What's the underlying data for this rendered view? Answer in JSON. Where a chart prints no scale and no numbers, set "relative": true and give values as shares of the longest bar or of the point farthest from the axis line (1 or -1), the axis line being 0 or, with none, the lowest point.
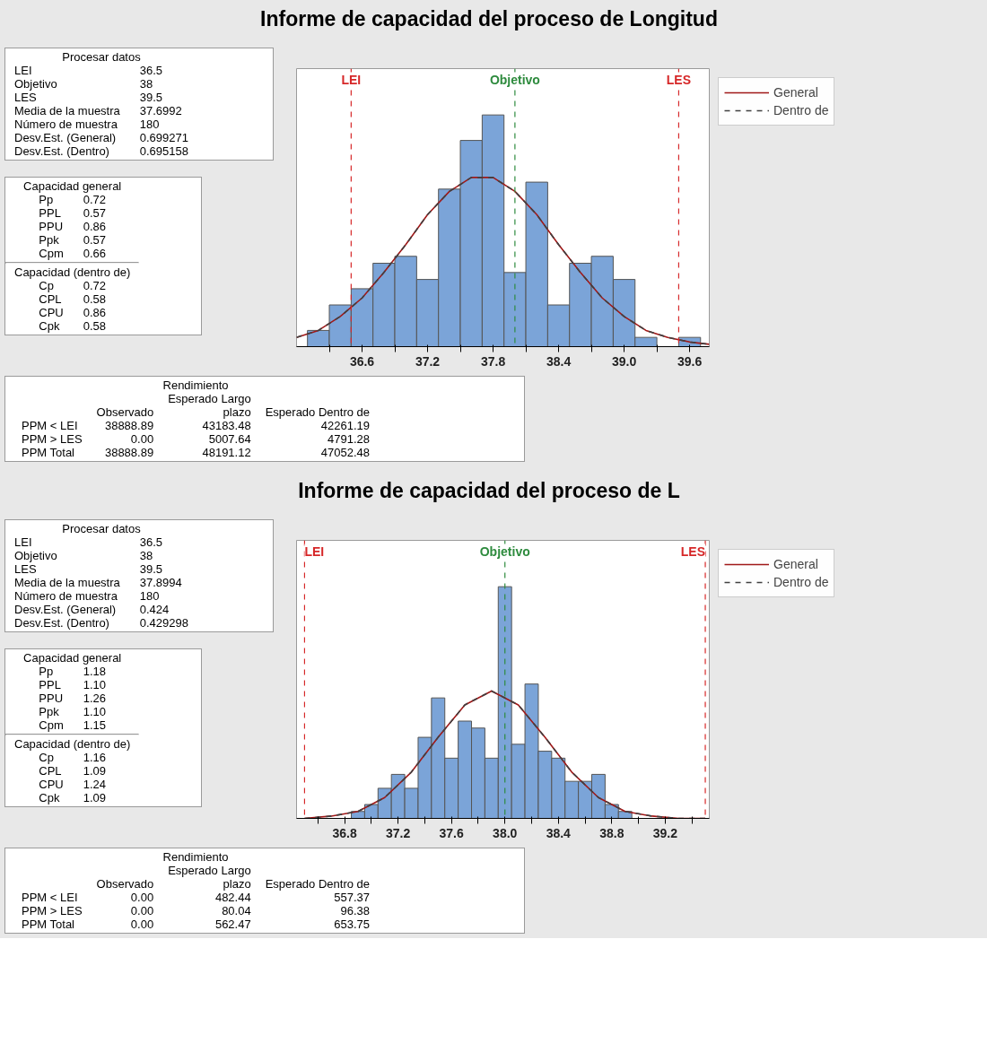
{
  "chart_data": [
    {
      "type": "histogram",
      "title": "Informe de capacidad del proceso de Longitud",
      "relative": true,
      "color": "#7ba4d8",
      "bins": [
        36.1,
        36.3,
        36.5,
        36.7,
        36.9,
        37.1,
        37.3,
        37.5,
        37.7,
        37.9,
        38.1,
        38.3,
        38.5,
        38.7,
        38.9,
        39.1,
        39.3,
        39.5,
        39.7
      ],
      "values": [
        0.07,
        0.18,
        0.25,
        0.36,
        0.39,
        0.29,
        0.68,
        0.89,
        1,
        0.32,
        0.71,
        0.18,
        0.36,
        0.39,
        0.29,
        0.04,
        0,
        0.04
      ],
      "xlim": [
        36.0,
        39.78
      ],
      "xticks": [
        {
          "value": 36.3,
          "label": null
        },
        36.6,
        {
          "value": 36.9,
          "label": null
        },
        37.2,
        {
          "value": 37.5,
          "label": null
        },
        37.8,
        {
          "value": 38.1,
          "label": null
        },
        38.4,
        {
          "value": 38.7,
          "label": null
        },
        {
          "value": 39,
          "label": "39.0"
        },
        {
          "value": 39.3,
          "label": null
        },
        39.6
      ],
      "ref_lines": [
        {
          "axis": "x",
          "value": 36.5,
          "label": "LEI",
          "color": "#d62728",
          "line_style": "dashed"
        },
        {
          "axis": "x",
          "value": 38,
          "label": "Objetivo",
          "color": "#2e8b3e",
          "line_style": "dashed"
        },
        {
          "axis": "x",
          "value": 39.5,
          "label": "LES",
          "color": "#d62728",
          "line_style": "dashed"
        }
      ],
      "legend": "right",
      "series": [
        {
          "name": "General",
          "type": "line",
          "color": "#a01818",
          "line_style": "solid",
          "x": [
            36.0,
            36.2,
            36.4,
            36.6,
            36.8,
            37.0,
            37.2,
            37.4,
            37.6,
            37.7,
            37.8,
            38.0,
            38.2,
            38.4,
            38.6,
            38.8,
            39.0,
            39.2,
            39.4,
            39.6,
            39.78
          ],
          "values": [
            0.04,
            0.07,
            0.13,
            0.21,
            0.32,
            0.44,
            0.57,
            0.67,
            0.73,
            0.73,
            0.73,
            0.67,
            0.57,
            0.44,
            0.32,
            0.21,
            0.13,
            0.07,
            0.04,
            0.02,
            0.01
          ]
        },
        {
          "name": "Dentro de",
          "type": "line",
          "color": "#404040",
          "line_style": "dashed",
          "x": [
            36.0,
            36.2,
            36.4,
            36.6,
            36.8,
            37.0,
            37.2,
            37.4,
            37.6,
            37.7,
            37.8,
            38.0,
            38.2,
            38.4,
            38.6,
            38.8,
            39.0,
            39.2,
            39.4,
            39.6,
            39.78
          ],
          "values": [
            0.04,
            0.07,
            0.13,
            0.21,
            0.32,
            0.44,
            0.57,
            0.67,
            0.73,
            0.73,
            0.73,
            0.67,
            0.57,
            0.44,
            0.32,
            0.21,
            0.13,
            0.07,
            0.04,
            0.02,
            0.01
          ]
        }
      ],
      "annotations": [
        "Procesar datos",
        "LEI\t36.5",
        "Objetivo\t38",
        "LES\t39.5",
        "Media de la muestra\t37.6992",
        "Número de muestra\t180",
        "Desv.Est. (General)\t0.699271",
        "Desv.Est. (Dentro)\t0.695158",
        "Capacidad general",
        "Pp\t0.72",
        "PPL\t0.57",
        "PPU\t0.86",
        "Ppk\t0.57",
        "Cpm\t0.66",
        "Capacidad (dentro de)",
        "Cp\t0.72",
        "CPL\t0.58",
        "CPU\t0.86",
        "Cpk\t0.58",
        "Rendimiento",
        "\tObservado\tEsperado Largo\nplazo\tEsperado Dentro de",
        "PPM < LEI\t38888.89\t43183.48\t42261.19",
        "PPM > LES\t0.00\t5007.64\t4791.28",
        "PPM Total\t38888.89\t48191.12\t47052.48"
      ]
    },
    {
      "type": "histogram",
      "title": "Informe de capacidad del proceso de L",
      "relative": true,
      "color": "#7ba4d8",
      "bins": [
        36.85,
        36.95,
        37.05,
        37.15,
        37.25,
        37.35,
        37.45,
        37.55,
        37.65,
        37.75,
        37.85,
        37.95,
        38.05,
        38.15,
        38.25,
        38.35,
        38.45,
        38.55,
        38.65,
        38.75,
        38.85,
        38.95
      ],
      "values": [
        0.03,
        0.06,
        0.13,
        0.19,
        0.13,
        0.35,
        0.52,
        0.26,
        0.42,
        0.39,
        0.26,
        1,
        0.32,
        0.58,
        0.29,
        0.26,
        0.16,
        0.16,
        0.19,
        0.06,
        0.03
      ],
      "xlim": [
        36.44,
        39.53
      ],
      "xticks": [
        {
          "value": 36.6,
          "label": null
        },
        36.8,
        {
          "value": 37,
          "label": null
        },
        37.2,
        {
          "value": 37.4,
          "label": null
        },
        37.6,
        {
          "value": 37.8,
          "label": null
        },
        {
          "value": 38,
          "label": "38.0"
        },
        {
          "value": 38.2,
          "label": null
        },
        38.4,
        {
          "value": 38.6,
          "label": null
        },
        38.8,
        {
          "value": 39,
          "label": null
        },
        39.2,
        {
          "value": 39.4,
          "label": null
        }
      ],
      "ref_lines": [
        {
          "axis": "x",
          "value": 36.5,
          "label": "LEI",
          "color": "#d62728",
          "line_style": "dashed"
        },
        {
          "axis": "x",
          "value": 38,
          "label": "Objetivo",
          "color": "#2e8b3e",
          "line_style": "dashed"
        },
        {
          "axis": "x",
          "value": 39.5,
          "label": "LES",
          "color": "#d62728",
          "line_style": "dashed"
        }
      ],
      "legend": "right",
      "series": [
        {
          "name": "General",
          "type": "line",
          "color": "#a01818",
          "line_style": "solid",
          "x": [
            36.5,
            36.7,
            36.9,
            37.1,
            37.3,
            37.5,
            37.7,
            37.9,
            38.1,
            38.3,
            38.5,
            38.7,
            38.9,
            39.1,
            39.3,
            39.5
          ],
          "values": [
            0,
            0.01,
            0.03,
            0.09,
            0.2,
            0.35,
            0.49,
            0.55,
            0.49,
            0.35,
            0.2,
            0.09,
            0.03,
            0.01,
            0,
            0
          ]
        },
        {
          "name": "Dentro de",
          "type": "line",
          "color": "#404040",
          "line_style": "dashed",
          "x": [
            36.5,
            36.7,
            36.9,
            37.1,
            37.3,
            37.5,
            37.7,
            37.9,
            38.1,
            38.3,
            38.5,
            38.7,
            38.9,
            39.1,
            39.3,
            39.5
          ],
          "values": [
            0,
            0.01,
            0.03,
            0.09,
            0.2,
            0.35,
            0.49,
            0.55,
            0.49,
            0.35,
            0.2,
            0.09,
            0.03,
            0.01,
            0,
            0
          ]
        }
      ],
      "annotations": [
        "Procesar datos",
        "LEI\t36.5",
        "Objetivo\t38",
        "LES\t39.5",
        "Media de la muestra\t37.8994",
        "Número de muestra\t180",
        "Desv.Est. (General)\t0.424",
        "Desv.Est. (Dentro)\t0.429298",
        "Capacidad general",
        "Pp\t1.18",
        "PPL\t1.10",
        "PPU\t1.26",
        "Ppk\t1.10",
        "Cpm\t1.15",
        "Capacidad (dentro de)",
        "Cp\t1.16",
        "CPL\t1.09",
        "CPU\t1.24",
        "Cpk\t1.09",
        "Rendimiento",
        "\tObservado\tEsperado Largo\nplazo\tEsperado Dentro de",
        "PPM < LEI\t0.00\t482.44\t557.37",
        "PPM > LES\t0.00\t80.04\t96.38",
        "PPM Total\t0.00\t562.47\t653.75"
      ]
    }
  ]
}
